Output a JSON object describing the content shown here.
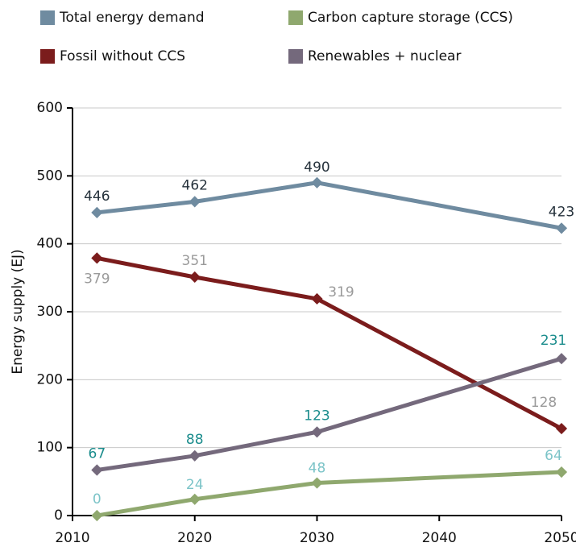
{
  "chart_data": {
    "type": "line",
    "y_label": "Energy supply (EJ)",
    "x": [
      2012,
      2020,
      2030,
      2050
    ],
    "series": [
      {
        "name": "Total energy demand",
        "color": "#6f8ba0",
        "label_color": "#26323c",
        "values": [
          446,
          462,
          490,
          423
        ]
      },
      {
        "name": "Fossil without CCS",
        "color": "#7b1c1c",
        "label_color": "#9a9a9a",
        "values": [
          379,
          351,
          319,
          128
        ]
      },
      {
        "name": "Carbon capture storage (CCS)",
        "color": "#8fa86e",
        "label_color": "#7cc4c8",
        "values": [
          0,
          24,
          48,
          64
        ]
      },
      {
        "name": "Renewables + nuclear",
        "color": "#74697c",
        "label_color": "#1a8c8c",
        "values": [
          67,
          88,
          123,
          231
        ]
      }
    ],
    "xlim": [
      2010,
      2050
    ],
    "xticks": [
      2010,
      2020,
      2030,
      2040,
      2050
    ],
    "ylim": [
      0,
      600
    ],
    "yticks": [
      0,
      100,
      200,
      300,
      400,
      500,
      600
    ],
    "grid": true
  }
}
